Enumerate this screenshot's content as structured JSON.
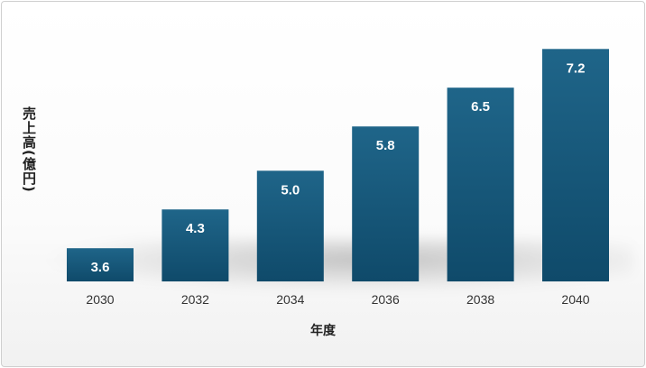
{
  "colors": {
    "bar_top": "#1f6589",
    "bar_bottom": "#0f4a6a",
    "label": "#ffffff",
    "tick": "#333333"
  },
  "chart_data": {
    "type": "bar",
    "title": "",
    "xlabel": "年度",
    "ylabel": "売上高(億円)",
    "categories": [
      "2030",
      "2032",
      "2034",
      "2036",
      "2038",
      "2040"
    ],
    "values": [
      3.6,
      4.3,
      5.0,
      5.8,
      6.5,
      7.2
    ],
    "value_labels": [
      "3.6",
      "4.3",
      "5.0",
      "5.8",
      "6.5",
      "7.2"
    ],
    "ylim": [
      3.0,
      7.4
    ],
    "grid": false,
    "legend": "none"
  }
}
